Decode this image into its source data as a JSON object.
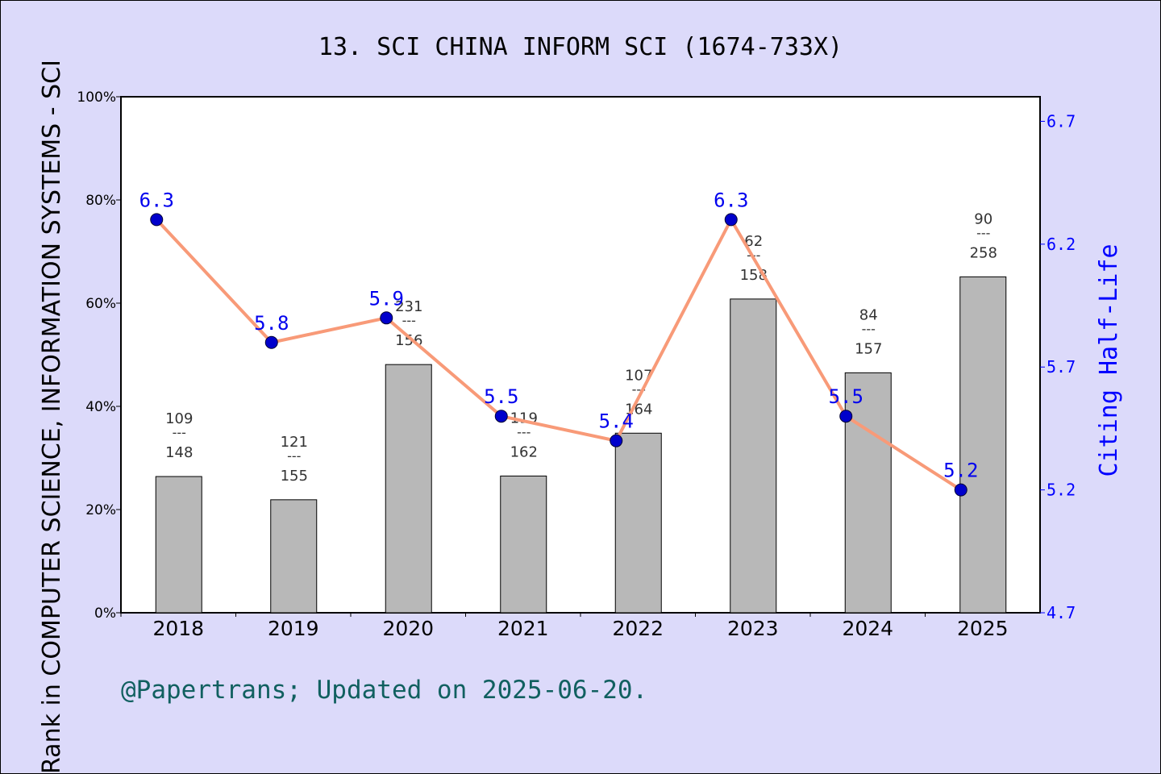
{
  "chart_data": {
    "type": "bar+line",
    "title": "13. SCI CHINA INFORM SCI (1674-733X)",
    "ylabel_left": "Rank in COMPUTER SCIENCE, INFORMATION SYSTEMS - SCI",
    "ylabel_right": "Citing Half-Life",
    "footer": "@Papertrans; Updated on 2025-06-20.",
    "categories": [
      "2018",
      "2019",
      "2020",
      "2021",
      "2022",
      "2023",
      "2024",
      "2025"
    ],
    "left_axis": {
      "ylim": [
        0,
        100
      ],
      "ticks": [
        "0%",
        "20%",
        "40%",
        "60%",
        "80%",
        "100%"
      ]
    },
    "right_axis": {
      "ylim": [
        4.7,
        6.8
      ],
      "ticks": [
        "4.7",
        "5.2",
        "5.7",
        "6.2",
        "6.7"
      ]
    },
    "bars": {
      "values": [
        26.4,
        21.9,
        48.1,
        26.5,
        34.8,
        60.8,
        46.5,
        65.1
      ],
      "rank_labels": [
        {
          "rank": "109",
          "total": "148"
        },
        {
          "rank": "121",
          "total": "155"
        },
        {
          "rank": "231",
          "total": "156"
        },
        {
          "rank": "119",
          "total": "162"
        },
        {
          "rank": "107",
          "total": "164"
        },
        {
          "rank": "62",
          "total": "158"
        },
        {
          "rank": "84",
          "total": "157"
        },
        {
          "rank": "90",
          "total": "258"
        }
      ],
      "separator": "---"
    },
    "line": {
      "values": [
        6.3,
        5.8,
        5.9,
        5.5,
        5.4,
        6.3,
        5.5,
        5.2
      ],
      "labels": [
        "6.3",
        "5.8",
        "5.9",
        "5.5",
        "5.4",
        "6.3",
        "5.5",
        "5.2"
      ]
    },
    "colors": {
      "bar": "#b8b8b8",
      "line": "#f89a78",
      "marker": "#0000cc",
      "right_axis": "#0000ff",
      "footer": "#116060",
      "background": "#dcdafa"
    }
  }
}
